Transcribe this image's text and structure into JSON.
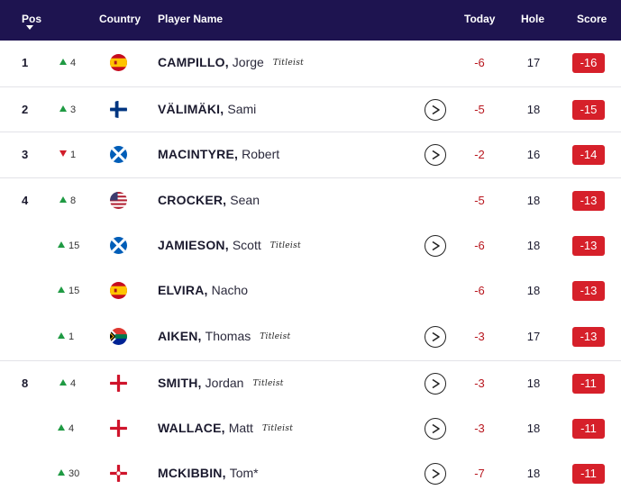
{
  "header": {
    "pos": "Pos",
    "country": "Country",
    "player": "Player Name",
    "today": "Today",
    "hole": "Hole",
    "score": "Score"
  },
  "colors": {
    "header_bg": "#1e1450",
    "score_badge": "#d6202a",
    "today_text": "#b8161e",
    "move_up": "#1f9a43",
    "move_down": "#d11d2a"
  },
  "rows": [
    {
      "pos": "1",
      "move_dir": "up",
      "move": "4",
      "country": "spain-flag-icon",
      "last": "CAMPILLO,",
      "first": "Jorge",
      "sponsor": "Titleist",
      "video": false,
      "today": "-6",
      "hole": "17",
      "score": "-16"
    },
    {
      "pos": "2",
      "move_dir": "up",
      "move": "3",
      "country": "finland-flag-icon",
      "last": "VÄLIMÄKI,",
      "first": "Sami",
      "sponsor": "",
      "video": true,
      "today": "-5",
      "hole": "18",
      "score": "-15"
    },
    {
      "pos": "3",
      "move_dir": "down",
      "move": "1",
      "country": "scotland-flag-icon",
      "last": "MACINTYRE,",
      "first": "Robert",
      "sponsor": "",
      "video": true,
      "today": "-2",
      "hole": "16",
      "score": "-14"
    },
    {
      "pos": "4",
      "move_dir": "up",
      "move": "8",
      "country": "usa-flag-icon",
      "last": "CROCKER,",
      "first": "Sean",
      "sponsor": "",
      "video": false,
      "today": "-5",
      "hole": "18",
      "score": "-13"
    },
    {
      "pos": "",
      "move_dir": "up",
      "move": "15",
      "country": "scotland-flag-icon",
      "last": "JAMIESON,",
      "first": "Scott",
      "sponsor": "Titleist",
      "video": true,
      "today": "-6",
      "hole": "18",
      "score": "-13"
    },
    {
      "pos": "",
      "move_dir": "up",
      "move": "15",
      "country": "spain-flag-icon",
      "last": "ELVIRA,",
      "first": "Nacho",
      "sponsor": "",
      "video": false,
      "today": "-6",
      "hole": "18",
      "score": "-13"
    },
    {
      "pos": "",
      "move_dir": "up",
      "move": "1",
      "country": "south-africa-flag-icon",
      "last": "AIKEN,",
      "first": "Thomas",
      "sponsor": "Titleist",
      "video": true,
      "today": "-3",
      "hole": "17",
      "score": "-13"
    },
    {
      "pos": "8",
      "move_dir": "up",
      "move": "4",
      "country": "england-flag-icon",
      "last": "SMITH,",
      "first": "Jordan",
      "sponsor": "Titleist",
      "video": true,
      "today": "-3",
      "hole": "18",
      "score": "-11"
    },
    {
      "pos": "",
      "move_dir": "up",
      "move": "4",
      "country": "england-flag-icon",
      "last": "WALLACE,",
      "first": "Matt",
      "sponsor": "Titleist",
      "video": true,
      "today": "-3",
      "hole": "18",
      "score": "-11"
    },
    {
      "pos": "",
      "move_dir": "up",
      "move": "30",
      "country": "northern-ireland-flag-icon",
      "last": "MCKIBBIN,",
      "first": "Tom*",
      "sponsor": "",
      "video": true,
      "today": "-7",
      "hole": "18",
      "score": "-11"
    }
  ]
}
